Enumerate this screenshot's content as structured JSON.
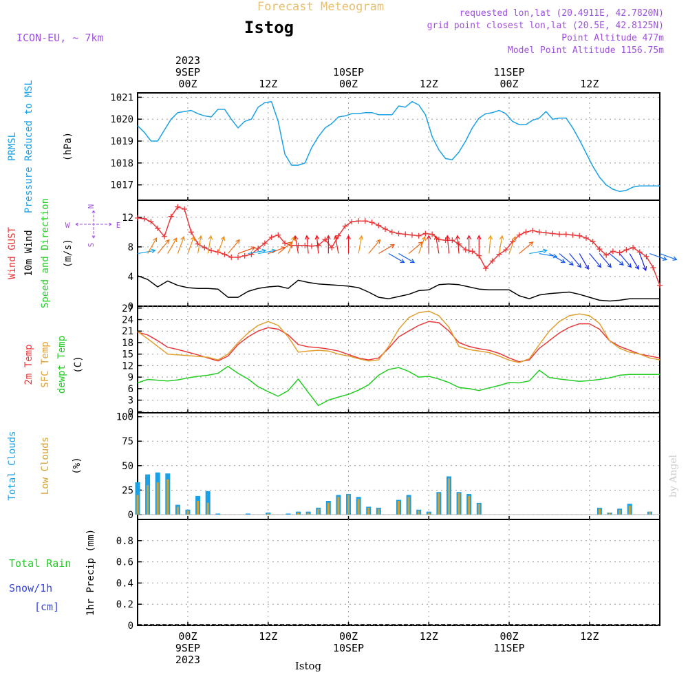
{
  "header": {
    "source_title": "Forecast Meteogram",
    "station": "Istog",
    "model": "ICON-EU, ~ 7km",
    "requested": "requested lon,lat (20.4911E, 42.7820N)",
    "grid_point": "grid point closest lon,lat (20.5E, 42.8125N)",
    "point_altitude": "Point Altitude 477m",
    "model_altitude": "Model Point Altitude 1156.75m",
    "footer_station": "Istog",
    "credit": "by Angel"
  },
  "colors": {
    "pressure": "#1aa0e6",
    "gust": "#e8383a",
    "wind10m": "#000000",
    "temp2m": "#e8383a",
    "sfc_temp": "#e0a030",
    "dewpoint": "#22cc22",
    "total_clouds": "#1aa0e6",
    "low_clouds": "#d4a030",
    "rain": "#22cc22",
    "snow": "#3344dd",
    "compass": "#a050e0",
    "header_info": "#a050e0"
  },
  "chart_data": [
    {
      "type": "line",
      "name": "pressure",
      "ylabel_lines": [
        "PRMSL",
        "Pressure Reduced to MSL"
      ],
      "unit": "(hPa)",
      "ylim": [
        1016.3,
        1021.2
      ],
      "yticks": [
        1017,
        1018,
        1019,
        1020,
        1021
      ],
      "x_hours": [
        -15,
        -13,
        -11,
        -9,
        -7,
        -5,
        -3,
        -1,
        1,
        3,
        5,
        7,
        9,
        11,
        13,
        15,
        17,
        19,
        21,
        23,
        25,
        27,
        29,
        31,
        33,
        35,
        37,
        39,
        41,
        43,
        45,
        47,
        49,
        51,
        53,
        55,
        57,
        59,
        61,
        63,
        65,
        67,
        69,
        71,
        73,
        75,
        77,
        79,
        81,
        83,
        85,
        87,
        89,
        91,
        93,
        95,
        97,
        99,
        101,
        103,
        105,
        107,
        109,
        111,
        113,
        115,
        117,
        119,
        121,
        123,
        125,
        127,
        129,
        131,
        133,
        135,
        137,
        139,
        141
      ],
      "series": [
        {
          "color_key": "pressure",
          "values": [
            1019.7,
            1019.4,
            1019.0,
            1019.0,
            1019.5,
            1020.0,
            1020.3,
            1020.35,
            1020.4,
            1020.25,
            1020.15,
            1020.1,
            1020.45,
            1020.45,
            1020.0,
            1019.6,
            1019.9,
            1020.0,
            1020.55,
            1020.75,
            1020.8,
            1019.9,
            1018.4,
            1017.9,
            1017.9,
            1018.0,
            1018.7,
            1019.2,
            1019.6,
            1019.8,
            1020.1,
            1020.15,
            1020.25,
            1020.25,
            1020.3,
            1020.3,
            1020.2,
            1020.2,
            1020.2,
            1020.6,
            1020.55,
            1020.8,
            1020.65,
            1020.2,
            1019.2,
            1018.6,
            1018.2,
            1018.15,
            1018.5,
            1019.0,
            1019.6,
            1020.05,
            1020.25,
            1020.3,
            1020.4,
            1020.25,
            1019.9,
            1019.75,
            1019.75,
            1019.95,
            1020.05,
            1020.35,
            1020.0,
            1020.05,
            1020.05,
            1019.6,
            1019.05,
            1018.45,
            1017.85,
            1017.35,
            1017.0,
            1016.8,
            1016.7,
            1016.75,
            1016.9,
            1016.95,
            1016.95,
            1016.95,
            1016.95
          ]
        }
      ]
    },
    {
      "type": "line",
      "name": "wind",
      "ylabel_lines": [
        "Wind GUST",
        "10m Wind",
        "Speed and Direction"
      ],
      "unit": "(m/s)",
      "ylim": [
        0,
        14.3
      ],
      "yticks": [
        0,
        4,
        8,
        12
      ],
      "compass": {
        "north": "N",
        "south": "S",
        "west": "W",
        "east": "E"
      },
      "gust_x_hours": [
        -15,
        -13,
        -11,
        -9,
        -7,
        -5,
        -3,
        -1,
        1,
        3,
        5,
        7,
        9,
        11,
        13,
        15,
        17,
        19,
        21,
        23,
        25,
        27,
        29,
        31,
        33,
        35,
        37,
        39,
        41,
        43,
        45,
        47,
        49,
        51,
        53,
        55,
        57,
        59,
        61,
        63,
        65,
        67,
        69,
        71,
        73,
        75,
        77,
        79,
        81,
        83,
        85,
        87,
        89,
        91,
        93,
        95,
        97,
        99,
        101,
        103,
        105,
        107,
        109,
        111,
        113,
        115,
        117,
        119,
        121,
        123,
        125,
        127,
        129,
        131,
        133,
        135,
        137,
        139,
        141
      ],
      "gust": [
        11.9,
        11.8,
        11.4,
        10.5,
        9.4,
        12.1,
        13.4,
        13.1,
        10.0,
        8.4,
        7.9,
        7.5,
        7.3,
        7.0,
        6.6,
        6.6,
        6.8,
        7.0,
        7.8,
        8.5,
        9.3,
        9.6,
        8.5,
        8.2,
        8.2,
        8.2,
        8.1,
        8.2,
        9.0,
        7.9,
        9.5,
        10.8,
        11.4,
        11.5,
        11.5,
        11.3,
        10.9,
        10.4,
        10.0,
        9.8,
        9.7,
        9.6,
        9.5,
        9.8,
        9.7,
        9.0,
        8.9,
        8.9,
        8.4,
        7.6,
        7.4,
        6.8,
        5.1,
        6.1,
        7.0,
        7.6,
        8.7,
        9.6,
        10.0,
        10.2,
        10.0,
        9.9,
        9.8,
        9.7,
        9.7,
        9.6,
        9.5,
        9.2,
        8.7,
        7.7,
        6.9,
        7.4,
        7.2,
        7.6,
        7.9,
        7.3,
        6.7,
        5.2,
        2.8
      ],
      "wind10m_x_hours": [
        -15,
        -12,
        -9,
        -6,
        -3,
        0,
        3,
        6,
        9,
        12,
        15,
        18,
        21,
        24,
        27,
        30,
        33,
        36,
        39,
        42,
        45,
        48,
        51,
        54,
        57,
        60,
        63,
        66,
        69,
        72,
        75,
        78,
        81,
        84,
        87,
        90,
        93,
        96,
        99,
        102,
        105,
        108,
        111,
        114,
        117,
        120,
        123,
        126,
        129,
        132,
        135,
        138,
        141
      ],
      "wind10m": [
        4.1,
        3.6,
        2.6,
        3.4,
        2.8,
        2.5,
        2.4,
        2.4,
        2.3,
        1.2,
        1.2,
        2.0,
        2.4,
        2.6,
        2.7,
        2.4,
        3.5,
        3.2,
        3.0,
        2.9,
        2.8,
        2.7,
        2.5,
        1.9,
        1.2,
        1.0,
        1.3,
        1.6,
        2.1,
        2.2,
        2.9,
        3.0,
        2.9,
        2.6,
        2.3,
        2.2,
        2.2,
        2.2,
        1.4,
        1.0,
        1.5,
        1.7,
        1.8,
        1.9,
        1.6,
        1.2,
        0.8,
        0.7,
        0.8,
        1.0,
        1.0,
        1.0,
        1.0
      ],
      "arrows_x_hours": [
        -15,
        -12,
        -9,
        -6,
        -3,
        0,
        3,
        6,
        9,
        12,
        15,
        18,
        21,
        24,
        27,
        30,
        33,
        36,
        39,
        42,
        45,
        48,
        51,
        54,
        57,
        60,
        63,
        66,
        69,
        72,
        75,
        78,
        81,
        84,
        87,
        90,
        93,
        96,
        99,
        102,
        105,
        108,
        111,
        114,
        117,
        120,
        123,
        126,
        129,
        132,
        135,
        138,
        141
      ],
      "arrows_dir_deg": [
        260,
        210,
        220,
        210,
        200,
        200,
        190,
        190,
        200,
        220,
        250,
        260,
        260,
        250,
        230,
        200,
        170,
        175,
        175,
        180,
        170,
        180,
        190,
        220,
        240,
        300,
        300,
        230,
        200,
        180,
        170,
        175,
        175,
        180,
        180,
        185,
        190,
        200,
        230,
        260,
        280,
        300,
        310,
        320,
        330,
        320,
        320,
        310,
        320,
        330,
        340,
        290,
        290
      ]
    },
    {
      "type": "line",
      "name": "temperature",
      "ylabel_lines": [
        "2m Temp",
        "SFC Temp",
        "dewpt Temp"
      ],
      "unit": "(C)",
      "ylim": [
        -0.3,
        27.5
      ],
      "yticks": [
        0,
        3,
        6,
        9,
        12,
        15,
        18,
        21,
        24,
        27
      ],
      "x_hours": [
        -15,
        -12,
        -9,
        -6,
        -3,
        0,
        3,
        6,
        9,
        12,
        15,
        18,
        21,
        24,
        27,
        30,
        33,
        36,
        39,
        42,
        45,
        48,
        51,
        54,
        57,
        60,
        63,
        66,
        69,
        72,
        75,
        78,
        81,
        84,
        87,
        90,
        93,
        96,
        99,
        102,
        105,
        108,
        111,
        114,
        117,
        120,
        123,
        126,
        129,
        132,
        135,
        138,
        141
      ],
      "series": [
        {
          "color_key": "temp2m",
          "values": [
            20.7,
            20.0,
            18.5,
            16.8,
            16.2,
            15.5,
            14.8,
            14.0,
            13.2,
            14.5,
            17.5,
            19.5,
            21.0,
            21.9,
            21.5,
            20.0,
            17.5,
            16.9,
            16.7,
            16.3,
            15.8,
            14.9,
            14.0,
            13.5,
            14.0,
            16.5,
            19.5,
            21.0,
            22.5,
            23.5,
            23.2,
            21.0,
            18.0,
            17.0,
            16.4,
            16.0,
            15.2,
            14.0,
            13.0,
            13.5,
            16.5,
            18.5,
            20.5,
            22.0,
            22.9,
            22.9,
            21.5,
            18.5,
            17.0,
            16.0,
            15.0,
            14.5,
            14.0
          ]
        },
        {
          "color_key": "sfc_temp",
          "values": [
            20.9,
            19.0,
            17.0,
            15.0,
            14.8,
            14.6,
            14.4,
            14.2,
            13.5,
            15.0,
            18.0,
            20.5,
            22.5,
            23.5,
            22.5,
            19.5,
            15.5,
            15.8,
            16.0,
            15.8,
            15.0,
            14.5,
            13.8,
            13.2,
            13.5,
            17.0,
            21.5,
            24.5,
            25.8,
            26.2,
            25.0,
            22.0,
            17.0,
            16.2,
            15.8,
            15.4,
            14.5,
            13.4,
            12.8,
            13.8,
            17.5,
            21.0,
            23.5,
            25.0,
            25.5,
            25.0,
            23.0,
            18.5,
            16.5,
            15.5,
            15.0,
            14.0,
            13.5
          ]
        },
        {
          "color_key": "dewpoint",
          "values": [
            7.5,
            8.4,
            8.2,
            8.0,
            8.3,
            8.8,
            9.2,
            9.5,
            10.0,
            11.8,
            10.0,
            8.5,
            6.5,
            5.2,
            4.0,
            5.5,
            8.5,
            5.0,
            1.6,
            3.0,
            3.8,
            4.5,
            5.6,
            7.0,
            9.5,
            11.0,
            11.5,
            10.5,
            9.0,
            9.2,
            8.5,
            7.6,
            6.3,
            6.0,
            5.5,
            6.2,
            6.8,
            7.6,
            7.5,
            8.0,
            10.8,
            8.9,
            8.5,
            8.2,
            7.9,
            8.1,
            8.4,
            8.8,
            9.5,
            9.7,
            9.7,
            9.7,
            9.7
          ]
        }
      ]
    },
    {
      "type": "bar",
      "name": "clouds",
      "ylabel_lines": [
        "Total Clouds",
        "Low Clouds"
      ],
      "unit": "(%)",
      "ylim": [
        -5,
        104
      ],
      "yticks": [
        0,
        25,
        50,
        75,
        100
      ],
      "x_hours": [
        -15,
        -12,
        -9,
        -6,
        -3,
        0,
        3,
        6,
        9,
        12,
        15,
        18,
        21,
        24,
        27,
        30,
        33,
        36,
        39,
        42,
        45,
        48,
        51,
        54,
        57,
        60,
        63,
        66,
        69,
        72,
        75,
        78,
        81,
        84,
        87,
        90,
        93,
        96,
        99,
        102,
        105,
        108,
        111,
        114,
        117,
        120,
        123,
        126,
        129,
        132,
        135,
        138,
        141
      ],
      "series": [
        {
          "color_key": "total_clouds",
          "values": [
            33,
            41,
            43,
            42,
            10,
            5,
            19,
            24,
            1,
            0,
            0,
            1,
            0,
            2,
            0,
            1,
            3,
            3,
            7,
            14,
            20,
            21,
            18,
            8,
            7,
            0,
            0,
            0,
            0,
            0,
            0,
            0,
            0,
            0,
            0,
            0,
            0,
            0,
            0,
            0,
            0,
            0,
            0,
            0,
            0,
            0,
            0,
            0,
            0,
            0,
            0,
            0,
            0
          ]
        },
        {
          "color_key": "low_clouds",
          "values": [
            20,
            30,
            33,
            36,
            8,
            4,
            14,
            12,
            0,
            0,
            0,
            0,
            0,
            1,
            0,
            0,
            2,
            2,
            6,
            12,
            18,
            20,
            16,
            7,
            6,
            0,
            0,
            0,
            0,
            0,
            0,
            0,
            0,
            0,
            0,
            0,
            0,
            0,
            0,
            0,
            0,
            0,
            0,
            0,
            0,
            0,
            0,
            0,
            0,
            0,
            0,
            0,
            0
          ]
        }
      ],
      "extra_bars_x_hours": [
        90,
        93,
        96,
        99,
        102,
        105,
        108,
        111,
        114,
        117,
        120,
        123,
        126,
        129,
        132,
        135,
        138,
        141
      ],
      "extra_total": [
        0,
        0,
        0,
        0,
        0,
        0,
        0,
        0,
        0,
        0,
        0,
        0,
        0,
        0,
        0,
        0,
        0,
        0
      ]
    },
    {
      "type": "bar",
      "name": "precip",
      "ylabel_lines": [
        "Total  Rain",
        "Snow/1h",
        "[cm]"
      ],
      "axis_label": "1hr Precip (mm)",
      "ylim": [
        0,
        1.0
      ],
      "yticks": [
        "0",
        "0.2",
        "0.4",
        "0.6",
        "0.8"
      ],
      "series": [
        {
          "name": "Total  Rain",
          "values": []
        }
      ]
    }
  ],
  "time_axis": {
    "x_range_hours": [
      -15,
      141
    ],
    "top_labels": [
      {
        "h": 0,
        "lines": [
          "2023",
          "9SEP",
          "00Z"
        ]
      },
      {
        "h": 24,
        "lines": [
          "12Z"
        ]
      },
      {
        "h": 48,
        "lines": [
          "10SEP",
          "00Z"
        ]
      },
      {
        "h": 72,
        "lines": [
          "12Z"
        ]
      },
      {
        "h": 96,
        "lines": [
          "11SEP",
          "00Z"
        ]
      },
      {
        "h": 120,
        "lines": [
          "12Z"
        ]
      }
    ],
    "bottom_labels": [
      {
        "h": 0,
        "lines": [
          "00Z",
          "9SEP",
          "2023"
        ]
      },
      {
        "h": 24,
        "lines": [
          "12Z"
        ]
      },
      {
        "h": 48,
        "lines": [
          "00Z",
          "10SEP"
        ]
      },
      {
        "h": 72,
        "lines": [
          "12Z"
        ]
      },
      {
        "h": 96,
        "lines": [
          "00Z",
          "11SEP"
        ]
      },
      {
        "h": 120,
        "lines": [
          "12Z"
        ]
      }
    ]
  }
}
